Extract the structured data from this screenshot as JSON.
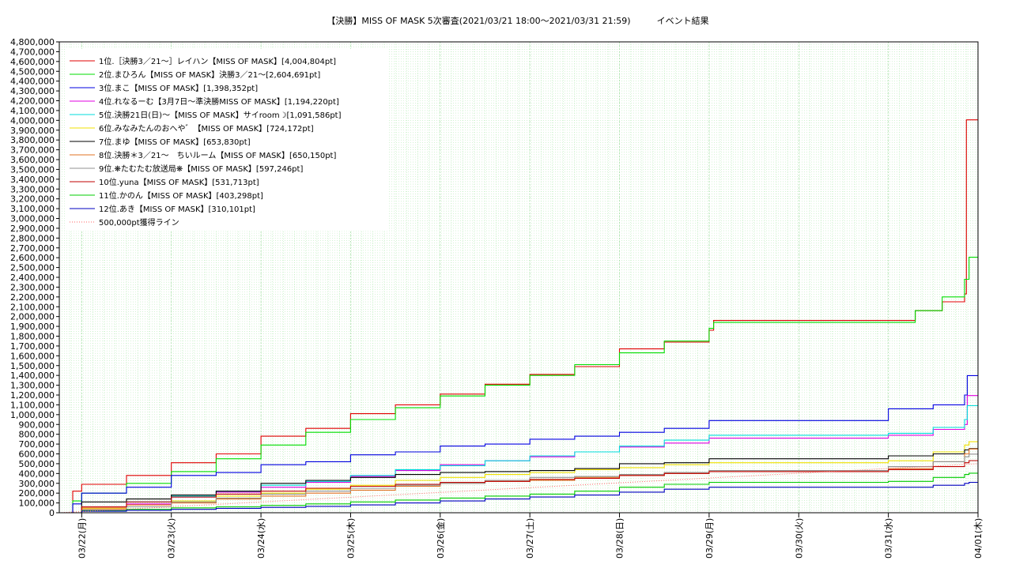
{
  "chart_data": {
    "type": "line",
    "title": "【決勝】MISS OF MASK 5次審査(2021/03/21 18:00～2021/03/31 21:59)　　　イベント結果",
    "xlabel": "",
    "ylabel": "",
    "ylim": [
      0,
      4800000
    ],
    "y_ticks": [
      "0",
      "100,000",
      "200,000",
      "300,000",
      "400,000",
      "500,000",
      "600,000",
      "700,000",
      "800,000",
      "900,000",
      "1,000,000",
      "1,100,000",
      "1,200,000",
      "1,300,000",
      "1,400,000",
      "1,500,000",
      "1,600,000",
      "1,700,000",
      "1,800,000",
      "1,900,000",
      "2,000,000",
      "2,100,000",
      "2,200,000",
      "2,300,000",
      "2,400,000",
      "2,500,000",
      "2,600,000",
      "2,700,000",
      "2,800,000",
      "2,900,000",
      "3,000,000",
      "3,100,000",
      "3,200,000",
      "3,300,000",
      "3,400,000",
      "3,500,000",
      "3,600,000",
      "3,700,000",
      "3,800,000",
      "3,900,000",
      "4,000,000",
      "4,100,000",
      "4,200,000",
      "4,300,000",
      "4,400,000",
      "4,500,000",
      "4,600,000",
      "4,700,000",
      "4,800,000"
    ],
    "x_ticks": [
      "03/22(月)",
      "03/23(火)",
      "03/24(水)",
      "03/25(木)",
      "03/26(金)",
      "03/27(土)",
      "03/28(日)",
      "03/29(月)",
      "03/30(火)",
      "03/31(水)",
      "04/01(木)"
    ],
    "x_range_days": [
      -0.25,
      10.0
    ],
    "grid": true,
    "legend_position": "top-left",
    "series": [
      {
        "name": "1位.［決勝3／21～］レイハン【MISS OF MASK】[4,004,804pt]",
        "color": "#e00000",
        "points": [
          [
            -0.25,
            0
          ],
          [
            -0.1,
            220000
          ],
          [
            0,
            290000
          ],
          [
            0.5,
            380000
          ],
          [
            1,
            510000
          ],
          [
            1.5,
            600000
          ],
          [
            2,
            780000
          ],
          [
            2.5,
            860000
          ],
          [
            3,
            1010000
          ],
          [
            3.5,
            1100000
          ],
          [
            4,
            1210000
          ],
          [
            4.5,
            1310000
          ],
          [
            5,
            1410000
          ],
          [
            5.5,
            1490000
          ],
          [
            6,
            1670000
          ],
          [
            6.5,
            1740000
          ],
          [
            7,
            1860000
          ],
          [
            7.05,
            1960000
          ],
          [
            8,
            1960000
          ],
          [
            9,
            1960000
          ],
          [
            9.3,
            2060000
          ],
          [
            9.6,
            2150000
          ],
          [
            9.85,
            2230000
          ],
          [
            9.87,
            4004804
          ],
          [
            10.0,
            4004804
          ]
        ]
      },
      {
        "name": "2位.まひろん【MISS OF MASK】決勝3／21～[2,604,691pt]",
        "color": "#00dd00",
        "points": [
          [
            -0.25,
            0
          ],
          [
            -0.1,
            120000
          ],
          [
            0,
            200000
          ],
          [
            0.5,
            300000
          ],
          [
            1,
            420000
          ],
          [
            1.5,
            550000
          ],
          [
            2,
            690000
          ],
          [
            2.5,
            820000
          ],
          [
            3,
            950000
          ],
          [
            3.5,
            1070000
          ],
          [
            4,
            1190000
          ],
          [
            4.5,
            1300000
          ],
          [
            5,
            1400000
          ],
          [
            5.5,
            1510000
          ],
          [
            6,
            1630000
          ],
          [
            6.5,
            1750000
          ],
          [
            7,
            1880000
          ],
          [
            7.05,
            1940000
          ],
          [
            8,
            1940000
          ],
          [
            9,
            1940000
          ],
          [
            9.3,
            2060000
          ],
          [
            9.6,
            2200000
          ],
          [
            9.85,
            2380000
          ],
          [
            9.9,
            2604691
          ],
          [
            10.0,
            2604691
          ]
        ]
      },
      {
        "name": "3位.まこ【MISS OF MASK】[1,398,352pt]",
        "color": "#0000e0",
        "points": [
          [
            -0.25,
            0
          ],
          [
            -0.1,
            90000
          ],
          [
            0,
            200000
          ],
          [
            0.5,
            260000
          ],
          [
            1,
            380000
          ],
          [
            1.5,
            410000
          ],
          [
            2,
            490000
          ],
          [
            2.5,
            520000
          ],
          [
            3,
            590000
          ],
          [
            3.5,
            620000
          ],
          [
            4,
            680000
          ],
          [
            4.5,
            700000
          ],
          [
            5,
            750000
          ],
          [
            5.5,
            780000
          ],
          [
            6,
            820000
          ],
          [
            6.5,
            860000
          ],
          [
            7,
            940000
          ],
          [
            8,
            940000
          ],
          [
            8.9,
            940000
          ],
          [
            9,
            1060000
          ],
          [
            9.5,
            1100000
          ],
          [
            9.85,
            1200000
          ],
          [
            9.88,
            1398352
          ],
          [
            10.0,
            1398352
          ]
        ]
      },
      {
        "name": "4位.れなるーむ【3月7日～準決勝MISS OF MASK】[1,194,220pt]",
        "color": "#e000e0",
        "points": [
          [
            -0.25,
            0
          ],
          [
            0,
            30000
          ],
          [
            0.5,
            90000
          ],
          [
            1,
            160000
          ],
          [
            1.5,
            210000
          ],
          [
            2,
            260000
          ],
          [
            2.5,
            310000
          ],
          [
            3,
            370000
          ],
          [
            3.5,
            430000
          ],
          [
            4,
            490000
          ],
          [
            4.5,
            530000
          ],
          [
            5,
            570000
          ],
          [
            5.5,
            620000
          ],
          [
            6,
            670000
          ],
          [
            6.5,
            710000
          ],
          [
            7,
            760000
          ],
          [
            8,
            760000
          ],
          [
            9,
            790000
          ],
          [
            9.5,
            850000
          ],
          [
            9.85,
            900000
          ],
          [
            9.88,
            1194220
          ],
          [
            10.0,
            1194220
          ]
        ]
      },
      {
        "name": "5位.決勝21日(日)～【MISS OF MASK】サイroom☽[1,091,586pt]",
        "color": "#00dddd",
        "points": [
          [
            -0.25,
            0
          ],
          [
            0,
            60000
          ],
          [
            0.5,
            110000
          ],
          [
            1,
            170000
          ],
          [
            1.5,
            220000
          ],
          [
            2,
            280000
          ],
          [
            2.5,
            320000
          ],
          [
            3,
            380000
          ],
          [
            3.5,
            440000
          ],
          [
            4,
            480000
          ],
          [
            4.5,
            530000
          ],
          [
            5,
            580000
          ],
          [
            5.5,
            620000
          ],
          [
            6,
            680000
          ],
          [
            6.5,
            740000
          ],
          [
            7,
            790000
          ],
          [
            8,
            790000
          ],
          [
            9,
            810000
          ],
          [
            9.5,
            870000
          ],
          [
            9.85,
            950000
          ],
          [
            9.88,
            1091586
          ],
          [
            10.0,
            1091586
          ]
        ]
      },
      {
        "name": "6位.みなみたんのおへや゛【MISS OF MASK】[724,172pt]",
        "color": "#f0e000",
        "points": [
          [
            -0.25,
            0
          ],
          [
            0,
            40000
          ],
          [
            0.5,
            80000
          ],
          [
            1,
            120000
          ],
          [
            1.5,
            170000
          ],
          [
            2,
            200000
          ],
          [
            2.5,
            240000
          ],
          [
            3,
            280000
          ],
          [
            3.5,
            330000
          ],
          [
            4,
            360000
          ],
          [
            4.5,
            390000
          ],
          [
            5,
            410000
          ],
          [
            5.5,
            440000
          ],
          [
            6,
            460000
          ],
          [
            6.5,
            490000
          ],
          [
            7,
            510000
          ],
          [
            8,
            510000
          ],
          [
            9,
            530000
          ],
          [
            9.5,
            620000
          ],
          [
            9.85,
            690000
          ],
          [
            9.9,
            724172
          ],
          [
            10.0,
            724172
          ]
        ]
      },
      {
        "name": "7位.まゆ【MISS OF MASK】[653,830pt]",
        "color": "#000000",
        "points": [
          [
            -0.25,
            0
          ],
          [
            0,
            110000
          ],
          [
            0.5,
            140000
          ],
          [
            1,
            180000
          ],
          [
            1.5,
            220000
          ],
          [
            2,
            300000
          ],
          [
            2.5,
            330000
          ],
          [
            3,
            360000
          ],
          [
            3.5,
            390000
          ],
          [
            4,
            410000
          ],
          [
            4.5,
            420000
          ],
          [
            5,
            430000
          ],
          [
            5.5,
            450000
          ],
          [
            6,
            500000
          ],
          [
            6.5,
            510000
          ],
          [
            7,
            550000
          ],
          [
            8,
            550000
          ],
          [
            9,
            580000
          ],
          [
            9.5,
            600000
          ],
          [
            9.85,
            640000
          ],
          [
            9.9,
            653830
          ],
          [
            10.0,
            653830
          ]
        ]
      },
      {
        "name": "8位.決勝＊3／21～　ちいルーム【MISS OF MASK】[650,150pt]",
        "color": "#e07020",
        "points": [
          [
            -0.25,
            0
          ],
          [
            0,
            50000
          ],
          [
            0.5,
            80000
          ],
          [
            1,
            100000
          ],
          [
            1.5,
            140000
          ],
          [
            2,
            170000
          ],
          [
            2.5,
            200000
          ],
          [
            3,
            230000
          ],
          [
            3.5,
            270000
          ],
          [
            4,
            300000
          ],
          [
            4.5,
            320000
          ],
          [
            5,
            330000
          ],
          [
            5.5,
            360000
          ],
          [
            6,
            380000
          ],
          [
            6.5,
            400000
          ],
          [
            7,
            430000
          ],
          [
            8,
            430000
          ],
          [
            9,
            450000
          ],
          [
            9.5,
            520000
          ],
          [
            9.85,
            600000
          ],
          [
            9.9,
            650150
          ],
          [
            10.0,
            650150
          ]
        ]
      },
      {
        "name": "9位.❋たむたむ放送局❋【MISS OF MASK】[597,246pt]",
        "color": "#909090",
        "points": [
          [
            -0.25,
            0
          ],
          [
            0,
            30000
          ],
          [
            0.5,
            60000
          ],
          [
            1,
            110000
          ],
          [
            1.5,
            150000
          ],
          [
            2,
            190000
          ],
          [
            2.5,
            220000
          ],
          [
            3,
            250000
          ],
          [
            3.5,
            280000
          ],
          [
            4,
            300000
          ],
          [
            4.5,
            330000
          ],
          [
            5,
            360000
          ],
          [
            5.5,
            370000
          ],
          [
            6,
            390000
          ],
          [
            6.5,
            410000
          ],
          [
            7,
            430000
          ],
          [
            8,
            430000
          ],
          [
            9,
            470000
          ],
          [
            9.5,
            520000
          ],
          [
            9.85,
            570000
          ],
          [
            9.9,
            597246
          ],
          [
            10.0,
            597246
          ]
        ]
      },
      {
        "name": "10位.yuna【MISS OF MASK】[531,713pt]",
        "color": "#c00000",
        "points": [
          [
            -0.25,
            0
          ],
          [
            0,
            60000
          ],
          [
            0.5,
            110000
          ],
          [
            1,
            160000
          ],
          [
            1.5,
            190000
          ],
          [
            2,
            220000
          ],
          [
            2.5,
            250000
          ],
          [
            3,
            270000
          ],
          [
            3.5,
            290000
          ],
          [
            4,
            310000
          ],
          [
            4.5,
            320000
          ],
          [
            5,
            340000
          ],
          [
            5.5,
            350000
          ],
          [
            6,
            380000
          ],
          [
            6.5,
            400000
          ],
          [
            7,
            420000
          ],
          [
            8,
            420000
          ],
          [
            9,
            440000
          ],
          [
            9.5,
            470000
          ],
          [
            9.85,
            510000
          ],
          [
            9.9,
            531713
          ],
          [
            10.0,
            531713
          ]
        ]
      },
      {
        "name": "11位.かのん【MISS OF MASK】[403,298pt]",
        "color": "#00cc00",
        "points": [
          [
            -0.25,
            0
          ],
          [
            0,
            20000
          ],
          [
            0.5,
            35000
          ],
          [
            1,
            50000
          ],
          [
            1.5,
            60000
          ],
          [
            2,
            75000
          ],
          [
            2.5,
            90000
          ],
          [
            3,
            110000
          ],
          [
            3.5,
            130000
          ],
          [
            4,
            150000
          ],
          [
            4.5,
            170000
          ],
          [
            5,
            190000
          ],
          [
            5.5,
            220000
          ],
          [
            6,
            260000
          ],
          [
            6.5,
            290000
          ],
          [
            7,
            310000
          ],
          [
            8,
            310000
          ],
          [
            9,
            320000
          ],
          [
            9.5,
            360000
          ],
          [
            9.85,
            390000
          ],
          [
            9.9,
            403298
          ],
          [
            10.0,
            403298
          ]
        ]
      },
      {
        "name": "12位.あき【MISS OF MASK】[310,101pt]",
        "color": "#0000c0",
        "points": [
          [
            -0.25,
            0
          ],
          [
            0,
            15000
          ],
          [
            0.5,
            25000
          ],
          [
            1,
            35000
          ],
          [
            1.5,
            45000
          ],
          [
            2,
            55000
          ],
          [
            2.5,
            65000
          ],
          [
            3,
            80000
          ],
          [
            3.5,
            100000
          ],
          [
            4,
            120000
          ],
          [
            4.5,
            140000
          ],
          [
            5,
            160000
          ],
          [
            5.5,
            180000
          ],
          [
            6,
            210000
          ],
          [
            6.5,
            240000
          ],
          [
            7,
            260000
          ],
          [
            8,
            260000
          ],
          [
            9,
            260000
          ],
          [
            9.5,
            280000
          ],
          [
            9.85,
            300000
          ],
          [
            9.9,
            310101
          ],
          [
            10.0,
            310101
          ]
        ]
      },
      {
        "name": "500,000pt獲得ライン",
        "color": "#ff6060",
        "dashed": true,
        "points": [
          [
            -0.25,
            0
          ],
          [
            10.0,
            500000
          ]
        ]
      }
    ]
  }
}
